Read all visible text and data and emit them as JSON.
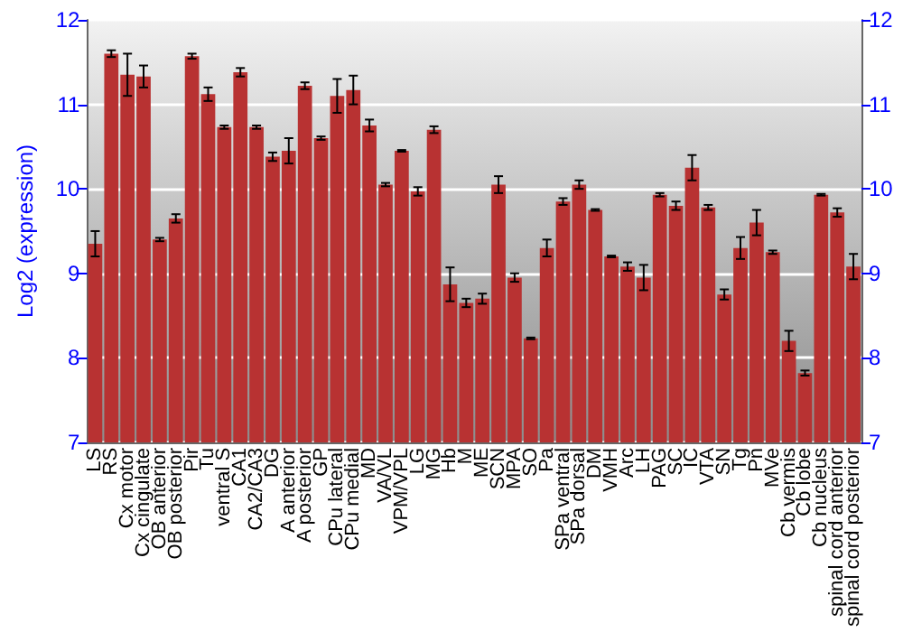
{
  "chart_data": {
    "type": "bar",
    "ylabel": "Log2 (expression)",
    "categories": [
      "LS",
      "RS",
      "Cx motor",
      "Cx cingulate",
      "OB anterior",
      "OB posterior",
      "Pir",
      "Tu",
      "ventral S",
      "CA1",
      "CA2/CA3",
      "DG",
      "A anterior",
      "A posterior",
      "GP",
      "CPu lateral",
      "CPu medial",
      "MD",
      "VA/VL",
      "VPM/VPL",
      "LG",
      "MG",
      "Hb",
      "M",
      "ME",
      "SCN",
      "MPA",
      "SO",
      "Pa",
      "SPa ventral",
      "SPa dorsal",
      "DM",
      "VMH",
      "Arc",
      "LH",
      "PAG",
      "SC",
      "IC",
      "VTA",
      "SN",
      "Tg",
      "Pn",
      "MVe",
      "Cb vermis",
      "Cb lobe",
      "Cb nucleus",
      "spinal cord anterior",
      "spinal cord posterior"
    ],
    "values": [
      9.35,
      11.6,
      11.35,
      11.33,
      9.4,
      9.65,
      11.57,
      11.12,
      10.73,
      11.38,
      10.73,
      10.38,
      10.45,
      11.22,
      10.6,
      11.1,
      11.17,
      10.75,
      10.05,
      10.45,
      9.97,
      10.7,
      8.87,
      8.65,
      8.7,
      10.05,
      8.95,
      8.23,
      9.3,
      9.85,
      10.05,
      9.75,
      9.2,
      9.08,
      8.95,
      9.93,
      9.8,
      10.25,
      9.78,
      8.75,
      9.3,
      9.6,
      9.25,
      8.2,
      7.82,
      9.93,
      9.72,
      9.08
    ],
    "errors": [
      0.15,
      0.04,
      0.25,
      0.13,
      0.02,
      0.05,
      0.03,
      0.08,
      0.02,
      0.05,
      0.02,
      0.05,
      0.15,
      0.04,
      0.02,
      0.2,
      0.17,
      0.07,
      0.02,
      0.01,
      0.05,
      0.04,
      0.2,
      0.05,
      0.06,
      0.1,
      0.05,
      0.01,
      0.1,
      0.04,
      0.05,
      0.01,
      0.01,
      0.05,
      0.15,
      0.02,
      0.05,
      0.15,
      0.03,
      0.06,
      0.13,
      0.15,
      0.02,
      0.12,
      0.03,
      0.01,
      0.05,
      0.15
    ],
    "color": "#b83232",
    "ylim": [
      7,
      12
    ],
    "yticks": [
      7,
      8,
      9,
      10,
      11,
      12
    ],
    "y2lim": [
      7,
      12
    ],
    "y2ticks": [
      7,
      8,
      9,
      10,
      11,
      12
    ],
    "grid": "y"
  }
}
